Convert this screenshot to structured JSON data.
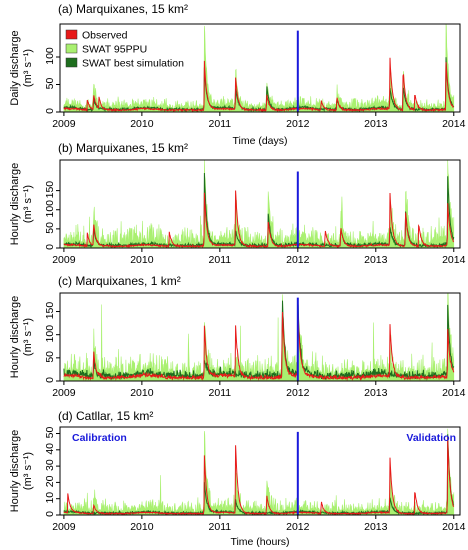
{
  "colors": {
    "observed": "#e81a1a",
    "ppu": "#a9f070",
    "best": "#1e6e1e",
    "divider": "#1a1adb",
    "axis": "#000000"
  },
  "legend": {
    "observed": "Observed",
    "ppu": "SWAT 95PPU",
    "best": "SWAT best simulation"
  },
  "chart_data": [
    {
      "type": "line",
      "title": "(a) Marquixanes, 15 km²",
      "ylabel_line1": "Daily discharge",
      "ylabel_line2": "(m³ s⁻¹)",
      "xlabel": "Time (days)",
      "x_range": [
        2009.0,
        2014.0
      ],
      "xlim": [
        2008.95,
        2014.08
      ],
      "ylim": [
        0,
        160
      ],
      "yticks": [
        0,
        50,
        100
      ],
      "xticks": [
        "2009",
        "2010",
        "2011",
        "2012",
        "2013",
        "2014"
      ],
      "divider_x": 2012.0,
      "divider_top": 148,
      "seed": 11,
      "base": 4,
      "obs_events": [
        [
          2009.38,
          30
        ],
        [
          2009.3,
          18
        ],
        [
          2009.45,
          22
        ],
        [
          2010.8,
          95
        ],
        [
          2011.2,
          62
        ],
        [
          2011.6,
          30
        ],
        [
          2012.3,
          18
        ],
        [
          2012.5,
          25
        ],
        [
          2013.18,
          100
        ],
        [
          2013.35,
          75
        ],
        [
          2013.5,
          30
        ],
        [
          2013.9,
          88
        ]
      ],
      "sim_events": [
        [
          2009.38,
          22
        ],
        [
          2010.8,
          80
        ],
        [
          2011.2,
          40
        ],
        [
          2011.6,
          45
        ],
        [
          2012.5,
          20
        ],
        [
          2013.18,
          40
        ],
        [
          2013.35,
          45
        ],
        [
          2013.9,
          95
        ]
      ],
      "ppu_events": [
        [
          2009.38,
          40
        ],
        [
          2010.8,
          160
        ],
        [
          2011.2,
          70
        ],
        [
          2011.6,
          50
        ],
        [
          2012.5,
          30
        ],
        [
          2013.18,
          80
        ],
        [
          2013.35,
          70
        ],
        [
          2013.9,
          160
        ]
      ],
      "ppu_noise": 20,
      "ppu_spikes": 30,
      "sim_noise": 3,
      "show_legend": true
    },
    {
      "type": "line",
      "title": "(b) Marquixanes, 15 km²",
      "ylabel_line1": "Hourly discharge",
      "ylabel_line2": "(m³ s⁻¹)",
      "xlabel": "",
      "x_range": [
        2009.0,
        2014.0
      ],
      "xlim": [
        2008.95,
        2014.08
      ],
      "ylim": [
        0,
        230
      ],
      "yticks": [
        0,
        50,
        100,
        150
      ],
      "xticks": [
        "2009",
        "2010",
        "2011",
        "2012",
        "2013",
        "2014"
      ],
      "divider_x": 2012.0,
      "divider_top": 200,
      "seed": 23,
      "base": 5,
      "obs_events": [
        [
          2009.38,
          60
        ],
        [
          2009.3,
          35
        ],
        [
          2010.35,
          40
        ],
        [
          2010.8,
          150
        ],
        [
          2011.2,
          155
        ],
        [
          2011.62,
          70
        ],
        [
          2012.35,
          45
        ],
        [
          2012.55,
          55
        ],
        [
          2013.18,
          150
        ],
        [
          2013.38,
          95
        ],
        [
          2013.55,
          60
        ],
        [
          2013.92,
          120
        ]
      ],
      "sim_events": [
        [
          2009.38,
          50
        ],
        [
          2010.8,
          200
        ],
        [
          2011.2,
          40
        ],
        [
          2011.62,
          90
        ],
        [
          2012.55,
          50
        ],
        [
          2013.18,
          50
        ],
        [
          2013.38,
          100
        ],
        [
          2013.92,
          190
        ]
      ],
      "ppu_events": [
        [
          2009.38,
          90
        ],
        [
          2010.8,
          230
        ],
        [
          2011.2,
          120
        ],
        [
          2011.62,
          150
        ],
        [
          2012.55,
          100
        ],
        [
          2013.18,
          120
        ],
        [
          2013.38,
          150
        ],
        [
          2013.92,
          230
        ]
      ],
      "ppu_noise": 60,
      "ppu_spikes": 70,
      "sim_noise": 8,
      "show_legend": false
    },
    {
      "type": "line",
      "title": "(c) Marquixanes, 1 km²",
      "ylabel_line1": "Hourly discharge",
      "ylabel_line2": "(m³ s⁻¹)",
      "xlabel": "",
      "x_range": [
        2009.0,
        2014.0
      ],
      "xlim": [
        2008.95,
        2014.08
      ],
      "ylim": [
        0,
        190
      ],
      "yticks": [
        0,
        50,
        100,
        150
      ],
      "xticks": [
        "2009",
        "2010",
        "2011",
        "2012",
        "2013",
        "2014"
      ],
      "divider_x": 2012.0,
      "divider_top": 180,
      "seed": 37,
      "base": 7,
      "obs_events": [
        [
          2009.38,
          60
        ],
        [
          2010.8,
          120
        ],
        [
          2011.2,
          120
        ],
        [
          2011.8,
          160
        ],
        [
          2012.0,
          150
        ],
        [
          2013.18,
          120
        ],
        [
          2013.92,
          110
        ]
      ],
      "sim_events": [
        [
          2009.38,
          30
        ],
        [
          2010.8,
          40
        ],
        [
          2011.8,
          180
        ],
        [
          2012.0,
          160
        ],
        [
          2013.92,
          160
        ]
      ],
      "ppu_events": [
        [
          2009.38,
          70
        ],
        [
          2010.8,
          120
        ],
        [
          2011.8,
          180
        ],
        [
          2012.0,
          170
        ],
        [
          2013.92,
          190
        ]
      ],
      "ppu_noise": 50,
      "ppu_spikes": 140,
      "sim_noise": 18,
      "show_legend": false
    },
    {
      "type": "line",
      "title": "(d) Catllar, 15 km²",
      "ylabel_line1": "Hourly discharge",
      "ylabel_line2": "(m³ s⁻¹)",
      "xlabel": "Time (hours)",
      "x_range": [
        2009.0,
        2014.0
      ],
      "xlim": [
        2008.95,
        2014.08
      ],
      "ylim": [
        0,
        54
      ],
      "yticks": [
        0,
        10,
        20,
        30,
        40,
        50
      ],
      "xticks": [
        "2009",
        "2010",
        "2011",
        "2012",
        "2013",
        "2014"
      ],
      "divider_x": 2012.0,
      "divider_top": 51,
      "seed": 53,
      "base": 1,
      "obs_events": [
        [
          2009.05,
          12
        ],
        [
          2009.38,
          6
        ],
        [
          2010.8,
          38
        ],
        [
          2011.2,
          45
        ],
        [
          2011.6,
          12
        ],
        [
          2012.3,
          8
        ],
        [
          2013.18,
          37
        ],
        [
          2013.5,
          15
        ],
        [
          2013.92,
          50
        ]
      ],
      "sim_events": [
        [
          2010.8,
          20
        ],
        [
          2011.2,
          8
        ],
        [
          2013.18,
          10
        ],
        [
          2013.92,
          52
        ]
      ],
      "ppu_events": [
        [
          2009.38,
          10
        ],
        [
          2010.8,
          52
        ],
        [
          2011.2,
          25
        ],
        [
          2011.6,
          20
        ],
        [
          2013.18,
          25
        ],
        [
          2013.92,
          54
        ]
      ],
      "ppu_noise": 10,
      "ppu_spikes": 20,
      "sim_noise": 1,
      "show_legend": false,
      "calibration_label": "Calibration",
      "validation_label": "Validation"
    }
  ]
}
